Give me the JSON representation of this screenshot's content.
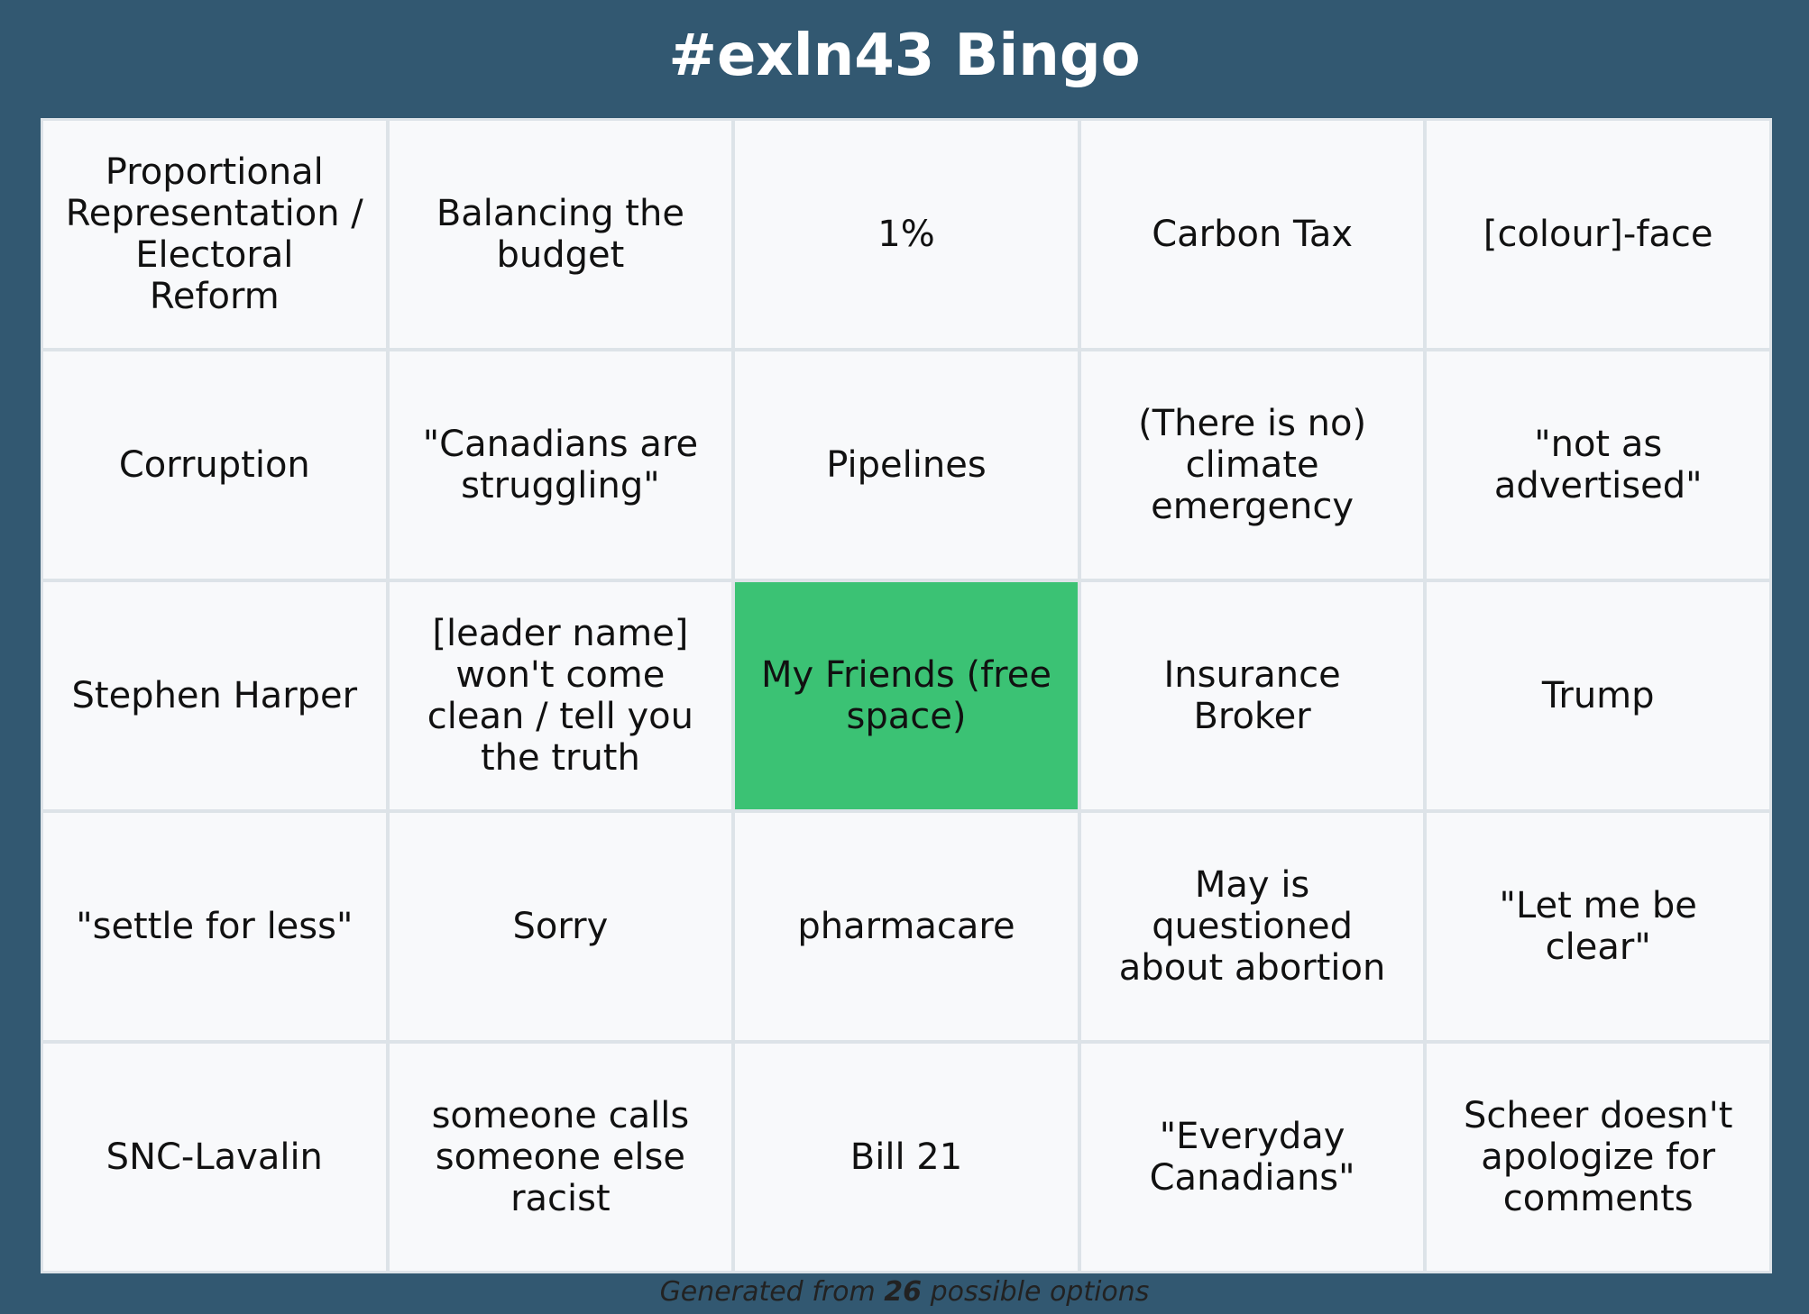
{
  "title": "#exln43 Bingo",
  "colors": {
    "background": "#325871",
    "cell": "#f8f9fb",
    "free_space": "#3bc274",
    "grid_line": "#dde3e8"
  },
  "board": {
    "rows": [
      [
        "Proportional Representation / Electoral Reform",
        "Balancing the budget",
        "1%",
        "Carbon Tax",
        "[colour]-face"
      ],
      [
        "Corruption",
        "\"Canadians are struggling\"",
        "Pipelines",
        "(There is no) climate emergency",
        "\"not as advertised\""
      ],
      [
        "Stephen Harper",
        "[leader name] won't come clean / tell you the truth",
        "My Friends (free space)",
        "Insurance Broker",
        "Trump"
      ],
      [
        "\"settle for less\"",
        "Sorry",
        "pharmacare",
        "May is questioned about abortion",
        "\"Let me be clear\""
      ],
      [
        "SNC-Lavalin",
        "someone calls someone else racist",
        "Bill 21",
        "\"Everyday Canadians\"",
        "Scheer doesn't apologize for comments"
      ]
    ]
  },
  "footer": {
    "prefix": "Generated from",
    "count": "26",
    "suffix": "possible options"
  }
}
